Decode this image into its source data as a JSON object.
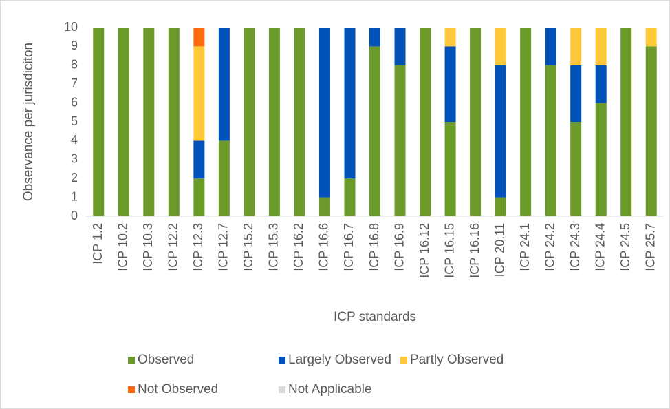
{
  "chart_data": {
    "type": "stacked_bar",
    "x_label": "ICP standards",
    "y_label": "Observance per jurisdiciton",
    "categories": [
      "ICP 1.2",
      "ICP 10.2",
      "ICP 10.3",
      "ICP 12.2",
      "ICP 12.3",
      "ICP 12.7",
      "ICP 15.2",
      "ICP 15.3",
      "ICP 16.2",
      "ICP 16.6",
      "ICP 16.7",
      "ICP 16.8",
      "ICP 16.9",
      "ICP 16.12",
      "ICP 16.15",
      "ICP 16.16",
      "ICP 20.11",
      "ICP 24.1",
      "ICP 24.2",
      "ICP 24.3",
      "ICP 24.4",
      "ICP 24.5",
      "ICP 25.7"
    ],
    "series": [
      {
        "name": "Observed",
        "color": "#6b9a2b",
        "values": [
          10,
          10,
          10,
          10,
          2,
          4,
          10,
          10,
          10,
          1,
          2,
          9,
          8,
          10,
          5,
          10,
          1,
          10,
          8,
          5,
          6,
          10,
          9
        ]
      },
      {
        "name": "Largely Observed",
        "color": "#0052b8",
        "values": [
          0,
          0,
          0,
          0,
          2,
          6,
          0,
          0,
          0,
          9,
          8,
          1,
          2,
          0,
          4,
          0,
          7,
          0,
          2,
          3,
          2,
          0,
          0
        ]
      },
      {
        "name": "Partly Observed",
        "color": "#ffc93c",
        "values": [
          0,
          0,
          0,
          0,
          5,
          0,
          0,
          0,
          0,
          0,
          0,
          0,
          0,
          0,
          1,
          0,
          2,
          0,
          0,
          2,
          2,
          0,
          1
        ]
      },
      {
        "name": "Not Observed",
        "color": "#ff6a10",
        "values": [
          0,
          0,
          0,
          0,
          1,
          0,
          0,
          0,
          0,
          0,
          0,
          0,
          0,
          0,
          0,
          0,
          0,
          0,
          0,
          0,
          0,
          0,
          0
        ]
      },
      {
        "name": "Not Applicable",
        "color": "#d9d9d9",
        "values": [
          0,
          0,
          0,
          0,
          0,
          0,
          0,
          0,
          0,
          0,
          0,
          0,
          0,
          0,
          0,
          0,
          0,
          0,
          0,
          0,
          0,
          0,
          0
        ]
      }
    ],
    "ylim": [
      0,
      10
    ],
    "yticks": [
      0,
      1,
      2,
      3,
      4,
      5,
      6,
      7,
      8,
      9,
      10
    ],
    "grid": false,
    "legend": "bottom"
  }
}
